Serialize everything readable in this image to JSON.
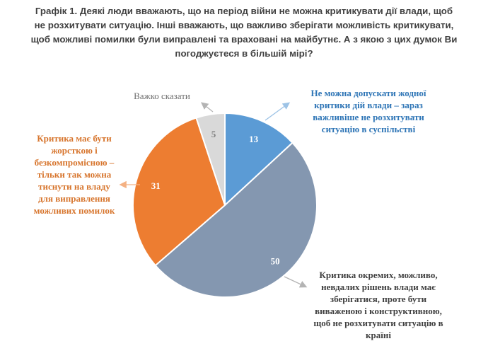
{
  "title_lines": [
    "Графік 1. Деякі люди вважають, що на період війни не можна критикувати дії влади, щоб",
    "не розхитувати ситуацію. Інші вважають, що важливо зберігати можливість критикувати,",
    "щоб можливі помилки були виправлені та враховані на майбутнє. А з якою з цих думок Ви",
    "погоджуєтеся в більшій мірі?"
  ],
  "annotations": {
    "blue": [
      "Не можна допускати жодної",
      "критики дій влади – зараз",
      "важливіше не розхитувати",
      "ситуацію в суспільстві"
    ],
    "gray": [
      "Критика окремих, можливо,",
      "невдалих рішень влади має",
      "зберігатися, проте бути",
      "виваженою і конструктивною,",
      "щоб не розхитувати ситуацію в",
      "країні"
    ],
    "orange": [
      "Критика має бути",
      "жорсткою і",
      "безкомпромісною –",
      "тільки так можна",
      "тиснути на владу",
      "для виправлення",
      "можливих помилок"
    ],
    "light": [
      "Важко сказати"
    ]
  },
  "chart_data": {
    "type": "pie",
    "slices": [
      {
        "label": "Не можна допускати жодної критики дій влади – зараз важливіше не розхитувати ситуацію в суспільстві",
        "value": 13,
        "color": "#5b9bd5"
      },
      {
        "label": "Критика окремих, можливо, невдалих рішень влади має зберігатися, проте бути виваженою і конструктивною, щоб не розхитувати ситуацію в країні",
        "value": 50,
        "color": "#8497b0"
      },
      {
        "label": "Критика має бути жорсткою і безкомпромісною – тільки так можна тиснути на владу для виправлення можливих помилок",
        "value": 31,
        "color": "#ed7d31"
      },
      {
        "label": "Важко сказати",
        "value": 5,
        "color": "#d9d9d9"
      }
    ],
    "value_label_colors": [
      "#ffffff",
      "#ffffff",
      "#ffffff",
      "#7f7f7f"
    ],
    "start": "12 o'clock",
    "direction": "clockwise"
  }
}
